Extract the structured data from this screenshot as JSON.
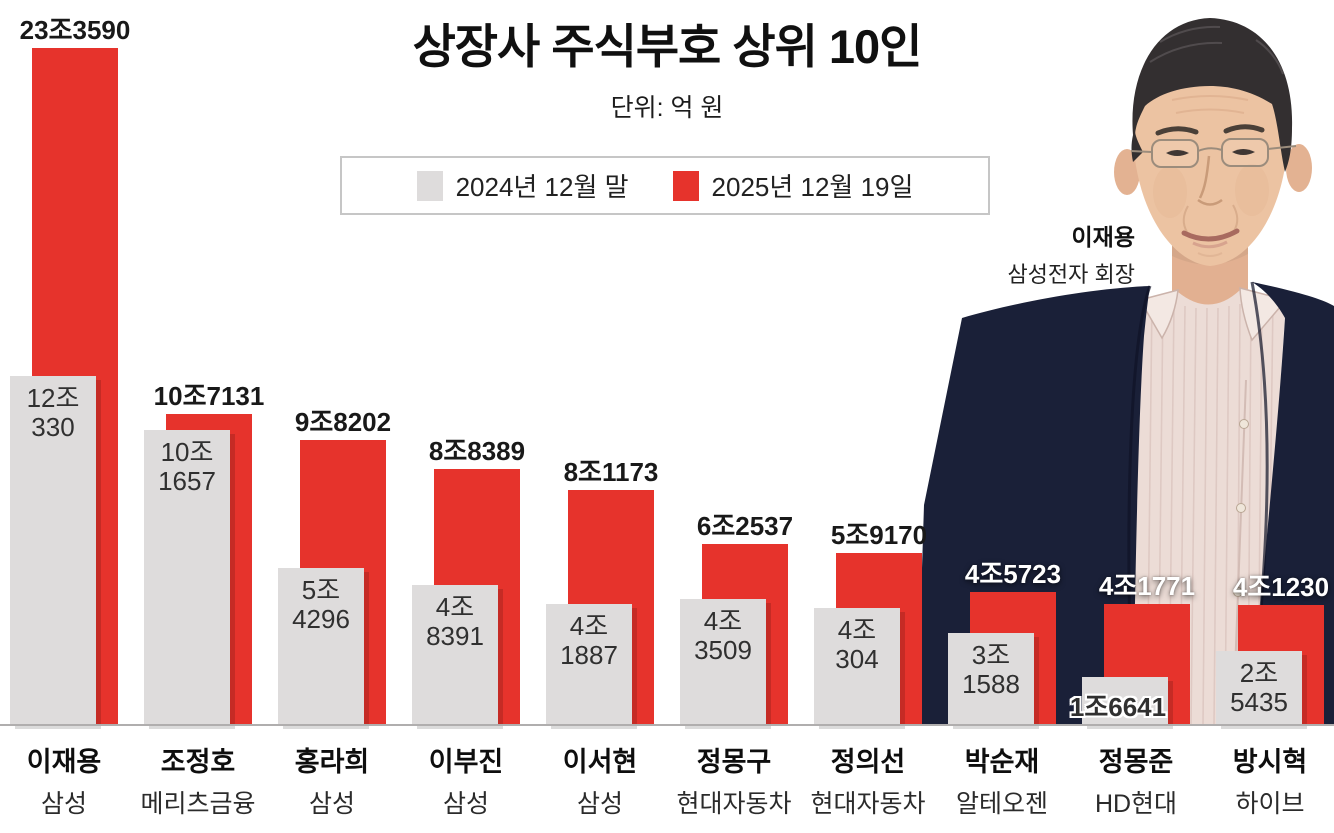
{
  "page": {
    "title": "상장사 주식부호 상위 10인",
    "unit_note": "단위: 억 원"
  },
  "legend": {
    "series_2024": {
      "label": "2024년 12월 말",
      "color": "#dedcdc"
    },
    "series_2025": {
      "label": "2025년 12월 19일",
      "color": "#e6332c"
    }
  },
  "photo": {
    "caption_name": "이재용",
    "caption_title": "삼성전자 회장"
  },
  "chart_data": {
    "type": "bar",
    "title": "상장사 주식부호 상위 10인",
    "value_unit": "억 원",
    "legend_position": "top-center",
    "baseline_axis": true,
    "series": [
      {
        "name": "2024년 12월 말",
        "color": "#dedcdc"
      },
      {
        "name": "2025년 12월 19일",
        "color": "#e6332c"
      }
    ],
    "categories": [
      "이재용",
      "조정호",
      "홍라희",
      "이부진",
      "이서현",
      "정몽구",
      "정의선",
      "박순재",
      "정몽준",
      "방시혁"
    ],
    "groups": [
      {
        "rank": 1,
        "name": "이재용",
        "company": "삼성",
        "value_2024": 120330,
        "label_2024": [
          "12조",
          "330"
        ],
        "value_2025": 233590,
        "label_2025": "23조3590",
        "on_photo": false
      },
      {
        "rank": 2,
        "name": "조정호",
        "company": "메리츠금융",
        "value_2024": 101657,
        "label_2024": [
          "10조",
          "1657"
        ],
        "value_2025": 107131,
        "label_2025": "10조7131",
        "on_photo": false
      },
      {
        "rank": 3,
        "name": "홍라희",
        "company": "삼성",
        "value_2024": 54296,
        "label_2024": [
          "5조",
          "4296"
        ],
        "value_2025": 98202,
        "label_2025": "9조8202",
        "on_photo": false
      },
      {
        "rank": 4,
        "name": "이부진",
        "company": "삼성",
        "value_2024": 48391,
        "label_2024": [
          "4조",
          "8391"
        ],
        "value_2025": 88389,
        "label_2025": "8조8389",
        "on_photo": false
      },
      {
        "rank": 5,
        "name": "이서현",
        "company": "삼성",
        "value_2024": 41887,
        "label_2024": [
          "4조",
          "1887"
        ],
        "value_2025": 81173,
        "label_2025": "8조1173",
        "on_photo": false
      },
      {
        "rank": 6,
        "name": "정몽구",
        "company": "현대자동차",
        "value_2024": 43509,
        "label_2024": [
          "4조",
          "3509"
        ],
        "value_2025": 62537,
        "label_2025": "6조2537",
        "on_photo": false
      },
      {
        "rank": 7,
        "name": "정의선",
        "company": "현대자동차",
        "value_2024": 40304,
        "label_2024": [
          "4조",
          "304"
        ],
        "value_2025": 59170,
        "label_2025": "5조9170",
        "on_photo": false
      },
      {
        "rank": 8,
        "name": "박순재",
        "company": "알테오젠",
        "value_2024": 31588,
        "label_2024": [
          "3조",
          "1588"
        ],
        "value_2025": 45723,
        "label_2025": "4조5723",
        "on_photo": true
      },
      {
        "rank": 9,
        "name": "정몽준",
        "company": "HD현대",
        "value_2024": 16641,
        "label_2024": [
          "1조6641"
        ],
        "value_2025": 41771,
        "label_2025": "4조1771",
        "on_photo": true
      },
      {
        "rank": 10,
        "name": "방시혁",
        "company": "하이브",
        "value_2024": 25435,
        "label_2024": [
          "2조",
          "5435"
        ],
        "value_2025": 41230,
        "label_2025": "4조1230",
        "on_photo": true
      }
    ]
  }
}
